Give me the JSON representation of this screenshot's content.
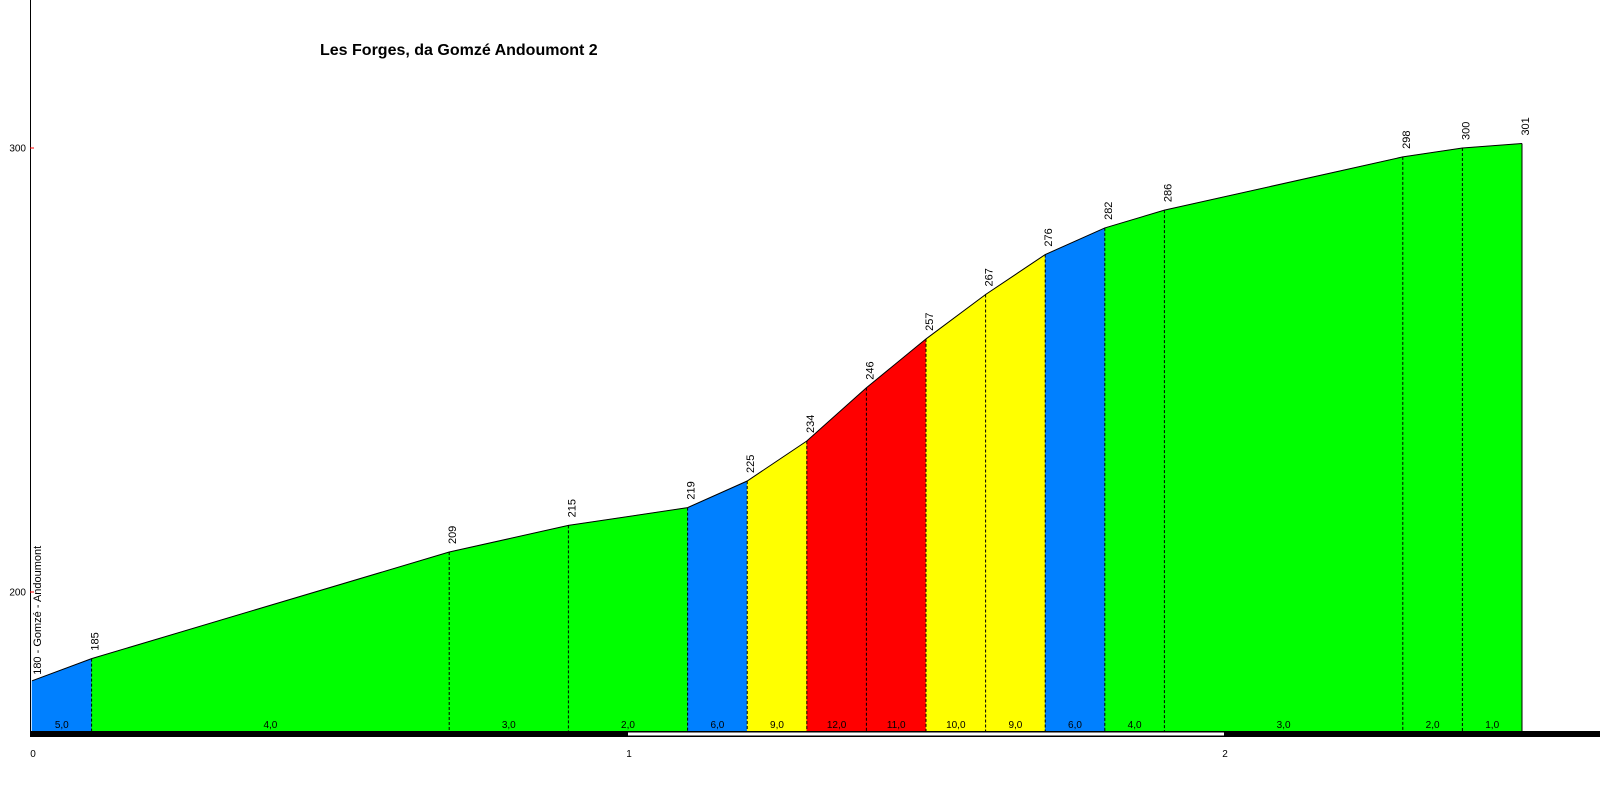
{
  "chart_data": {
    "type": "area",
    "title": "Les Forges, da Gomzé Andoumont 2",
    "start_label": "180 - Gomzé - Andoumont",
    "xlim": [
      0,
      2.62
    ],
    "ylim": [
      170.8,
      336
    ],
    "y_ticks": [
      200,
      300
    ],
    "x_ticks": [
      "0",
      "1",
      "2"
    ],
    "grid": false,
    "x": [
      0,
      0.1,
      0.7,
      0.9,
      1.1,
      1.2,
      1.3,
      1.4,
      1.5,
      1.6,
      1.7,
      1.8,
      1.9,
      2.3,
      2.4,
      2.5
    ],
    "elevations": [
      180,
      185,
      209,
      215,
      219,
      225,
      234,
      246,
      257,
      267,
      276,
      282,
      286,
      298,
      300,
      301
    ],
    "elevation_labels": [
      "185",
      "209",
      "215",
      "219",
      "225",
      "234",
      "246",
      "257",
      "267",
      "276",
      "282",
      "286",
      "298",
      "300",
      "301"
    ],
    "segments": [
      {
        "gradient": "5,0",
        "color": "#0080FF"
      },
      {
        "gradient": "4,0",
        "color": "#00FF00"
      },
      {
        "gradient": "3,0",
        "color": "#00FF00"
      },
      {
        "gradient": "2,0",
        "color": "#00FF00"
      },
      {
        "gradient": "6,0",
        "color": "#0080FF"
      },
      {
        "gradient": "9,0",
        "color": "#FFFF00"
      },
      {
        "gradient": "12,0",
        "color": "#FF0000"
      },
      {
        "gradient": "11,0",
        "color": "#FF0000"
      },
      {
        "gradient": "10,0",
        "color": "#FFFF00"
      },
      {
        "gradient": "9,0",
        "color": "#FFFF00"
      },
      {
        "gradient": "6,0",
        "color": "#0080FF"
      },
      {
        "gradient": "4,0",
        "color": "#00FF00"
      },
      {
        "gradient": "3,0",
        "color": "#00FF00"
      },
      {
        "gradient": "2,0",
        "color": "#00FF00"
      },
      {
        "gradient": "1,0",
        "color": "#00FF00"
      }
    ]
  }
}
